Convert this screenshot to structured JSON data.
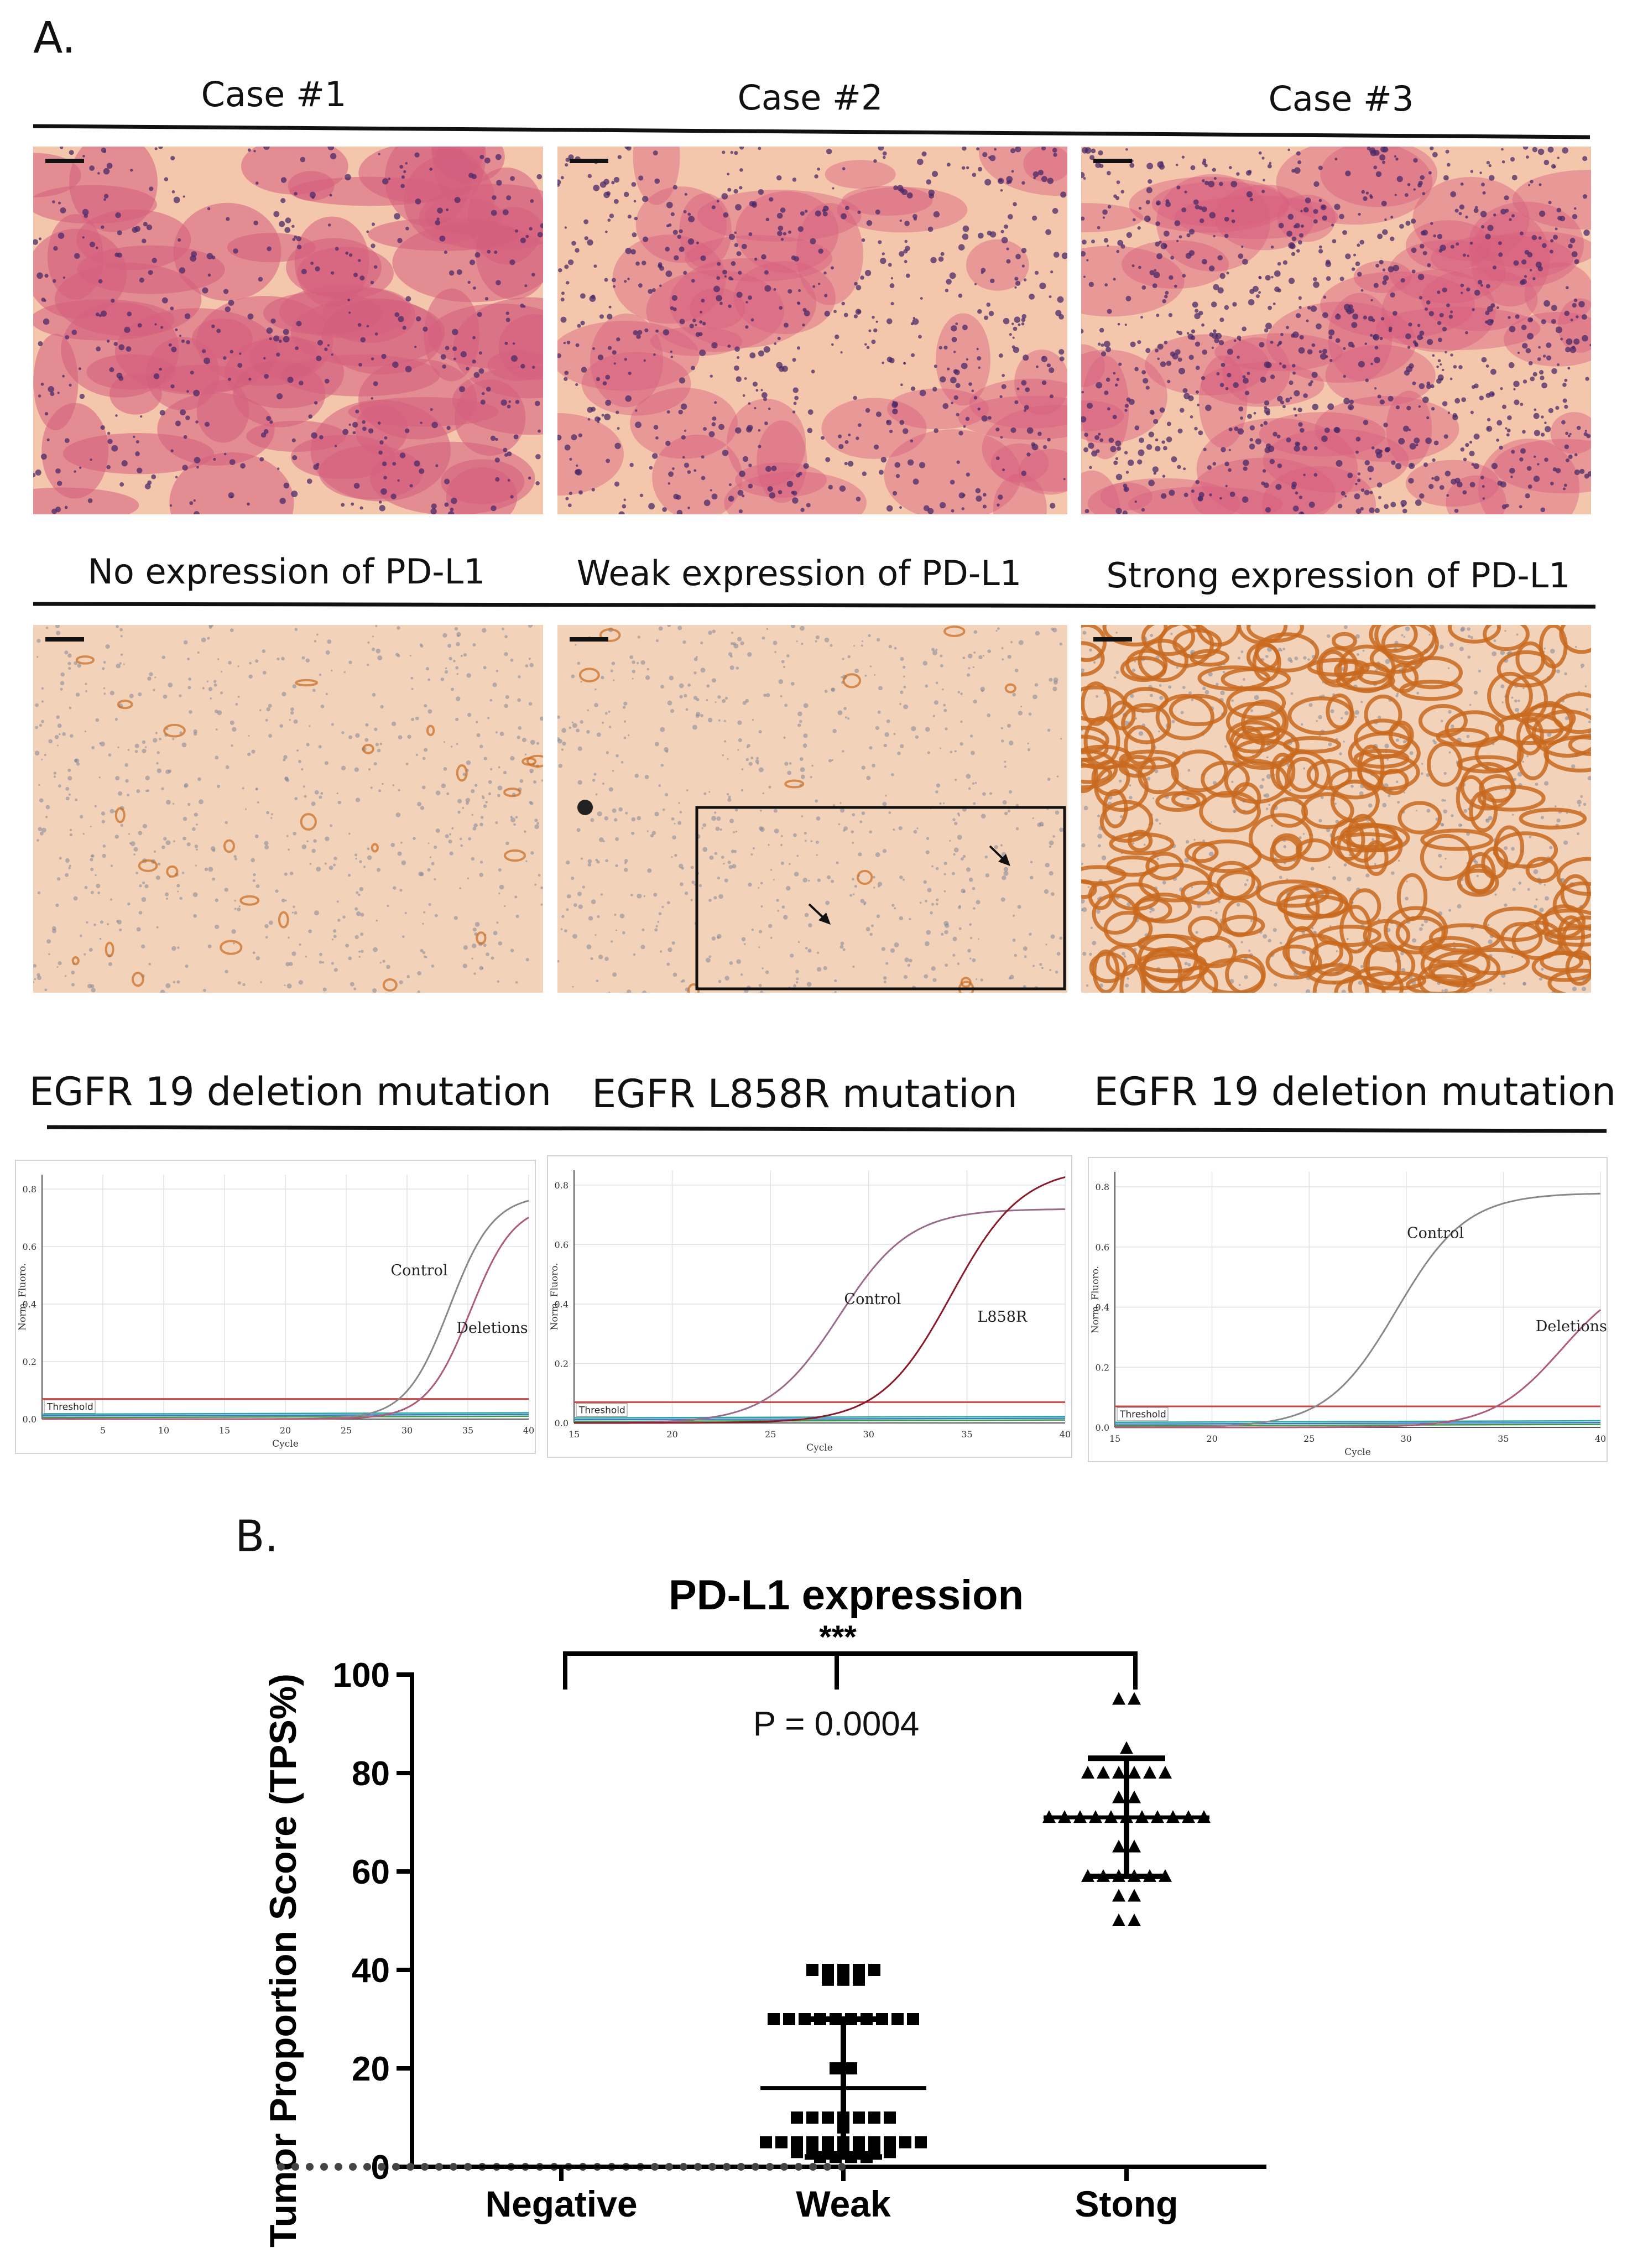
{
  "panel_a": {
    "label": "A.",
    "cases": [
      {
        "case_label": "Case #1",
        "he_tone": "sparse",
        "expression_label": "No expression of PD-L1"
      },
      {
        "case_label": "Case #2",
        "he_tone": "medium",
        "expression_label": "Weak expression of PD-L1"
      },
      {
        "case_label": "Case #3",
        "he_tone": "dense",
        "expression_label": "Strong expression of PD-L1"
      }
    ],
    "colors": {
      "he_background": "#f4c6ac",
      "he_tissue": "#d65f7e",
      "he_nuclei": "#4a2a68",
      "ihc_background": "#f3d2ba",
      "ihc_nuclei": "#7f8797",
      "ihc_stain": "#c86a1e"
    },
    "pcr": [
      {
        "mutation_label": "EGFR 19 deletion mutation",
        "y_axis_label": "Norm. Fluoro.",
        "x_axis_label": "Cycle",
        "threshold_label": "Threshold",
        "x_ticks": [
          "5",
          "10",
          "15",
          "20",
          "25",
          "30",
          "35",
          "40"
        ],
        "y_ticks": [
          "0.0",
          "0.2",
          "0.4",
          "0.6",
          "0.8"
        ],
        "series_labels": [
          "Control",
          "Deletions"
        ]
      },
      {
        "mutation_label": "EGFR L858R mutation",
        "y_axis_label": "Norm. Fluoro.",
        "x_axis_label": "Cycle",
        "threshold_label": "Threshold",
        "x_ticks": [
          "15",
          "20",
          "25",
          "30",
          "35",
          "40"
        ],
        "y_ticks": [
          "0.0",
          "0.2",
          "0.4",
          "0.6",
          "0.8"
        ],
        "series_labels": [
          "Control",
          "L858R"
        ]
      },
      {
        "mutation_label": "EGFR 19 deletion mutation",
        "y_axis_label": "Norm. Fluoro.",
        "x_axis_label": "Cycle",
        "threshold_label": "Threshold",
        "x_ticks": [
          "15",
          "20",
          "25",
          "30",
          "35",
          "40"
        ],
        "y_ticks": [
          "0.0",
          "0.2",
          "0.4",
          "0.6",
          "0.8"
        ],
        "series_labels": [
          "Control",
          "Deletions"
        ]
      }
    ]
  },
  "panel_b": {
    "label": "B.",
    "significance": "***",
    "p_value": "P = 0.0004",
    "chart_data": {
      "type": "scatter",
      "title": "PD-L1 expression",
      "ylabel": "Tumor Proportion Score (TPS%)",
      "xlabel": "",
      "categories": [
        "Negative",
        "Weak",
        "Stong"
      ],
      "ylim": [
        0,
        100
      ],
      "y_ticks": [
        0,
        20,
        40,
        60,
        80,
        100
      ],
      "grid": false,
      "legend": "none",
      "series": [
        {
          "category": "Negative",
          "marker": "circle",
          "mean": 0,
          "sd_low": 0,
          "sd_high": 0,
          "values": [
            0,
            0,
            0,
            0,
            0,
            0,
            0,
            0,
            0,
            0,
            0,
            0,
            0,
            0,
            0,
            0,
            0,
            0,
            0,
            0,
            0,
            0,
            0,
            0,
            0,
            0,
            0,
            0,
            0,
            0,
            0,
            0,
            0,
            0,
            0,
            0,
            0,
            0,
            0,
            0
          ]
        },
        {
          "category": "Weak",
          "marker": "square",
          "mean": 16,
          "sd_low": 2,
          "sd_high": 30,
          "values": [
            40,
            40,
            40,
            40,
            40,
            38,
            38,
            38,
            30,
            30,
            30,
            30,
            30,
            30,
            30,
            30,
            30,
            30,
            20,
            20,
            10,
            10,
            10,
            10,
            10,
            10,
            10,
            8,
            5,
            5,
            5,
            5,
            5,
            5,
            5,
            5,
            5,
            5,
            5,
            3,
            3,
            3,
            3,
            3,
            3,
            3,
            2,
            2,
            2,
            2
          ]
        },
        {
          "category": "Stong",
          "marker": "triangle",
          "mean": 71,
          "sd_low": 59,
          "sd_high": 83,
          "values": [
            95,
            95,
            85,
            80,
            80,
            80,
            80,
            80,
            80,
            75,
            75,
            71,
            71,
            71,
            71,
            71,
            71,
            71,
            71,
            71,
            71,
            71,
            65,
            65,
            59,
            59,
            59,
            59,
            59,
            59,
            55,
            55,
            50,
            50
          ]
        }
      ]
    }
  }
}
